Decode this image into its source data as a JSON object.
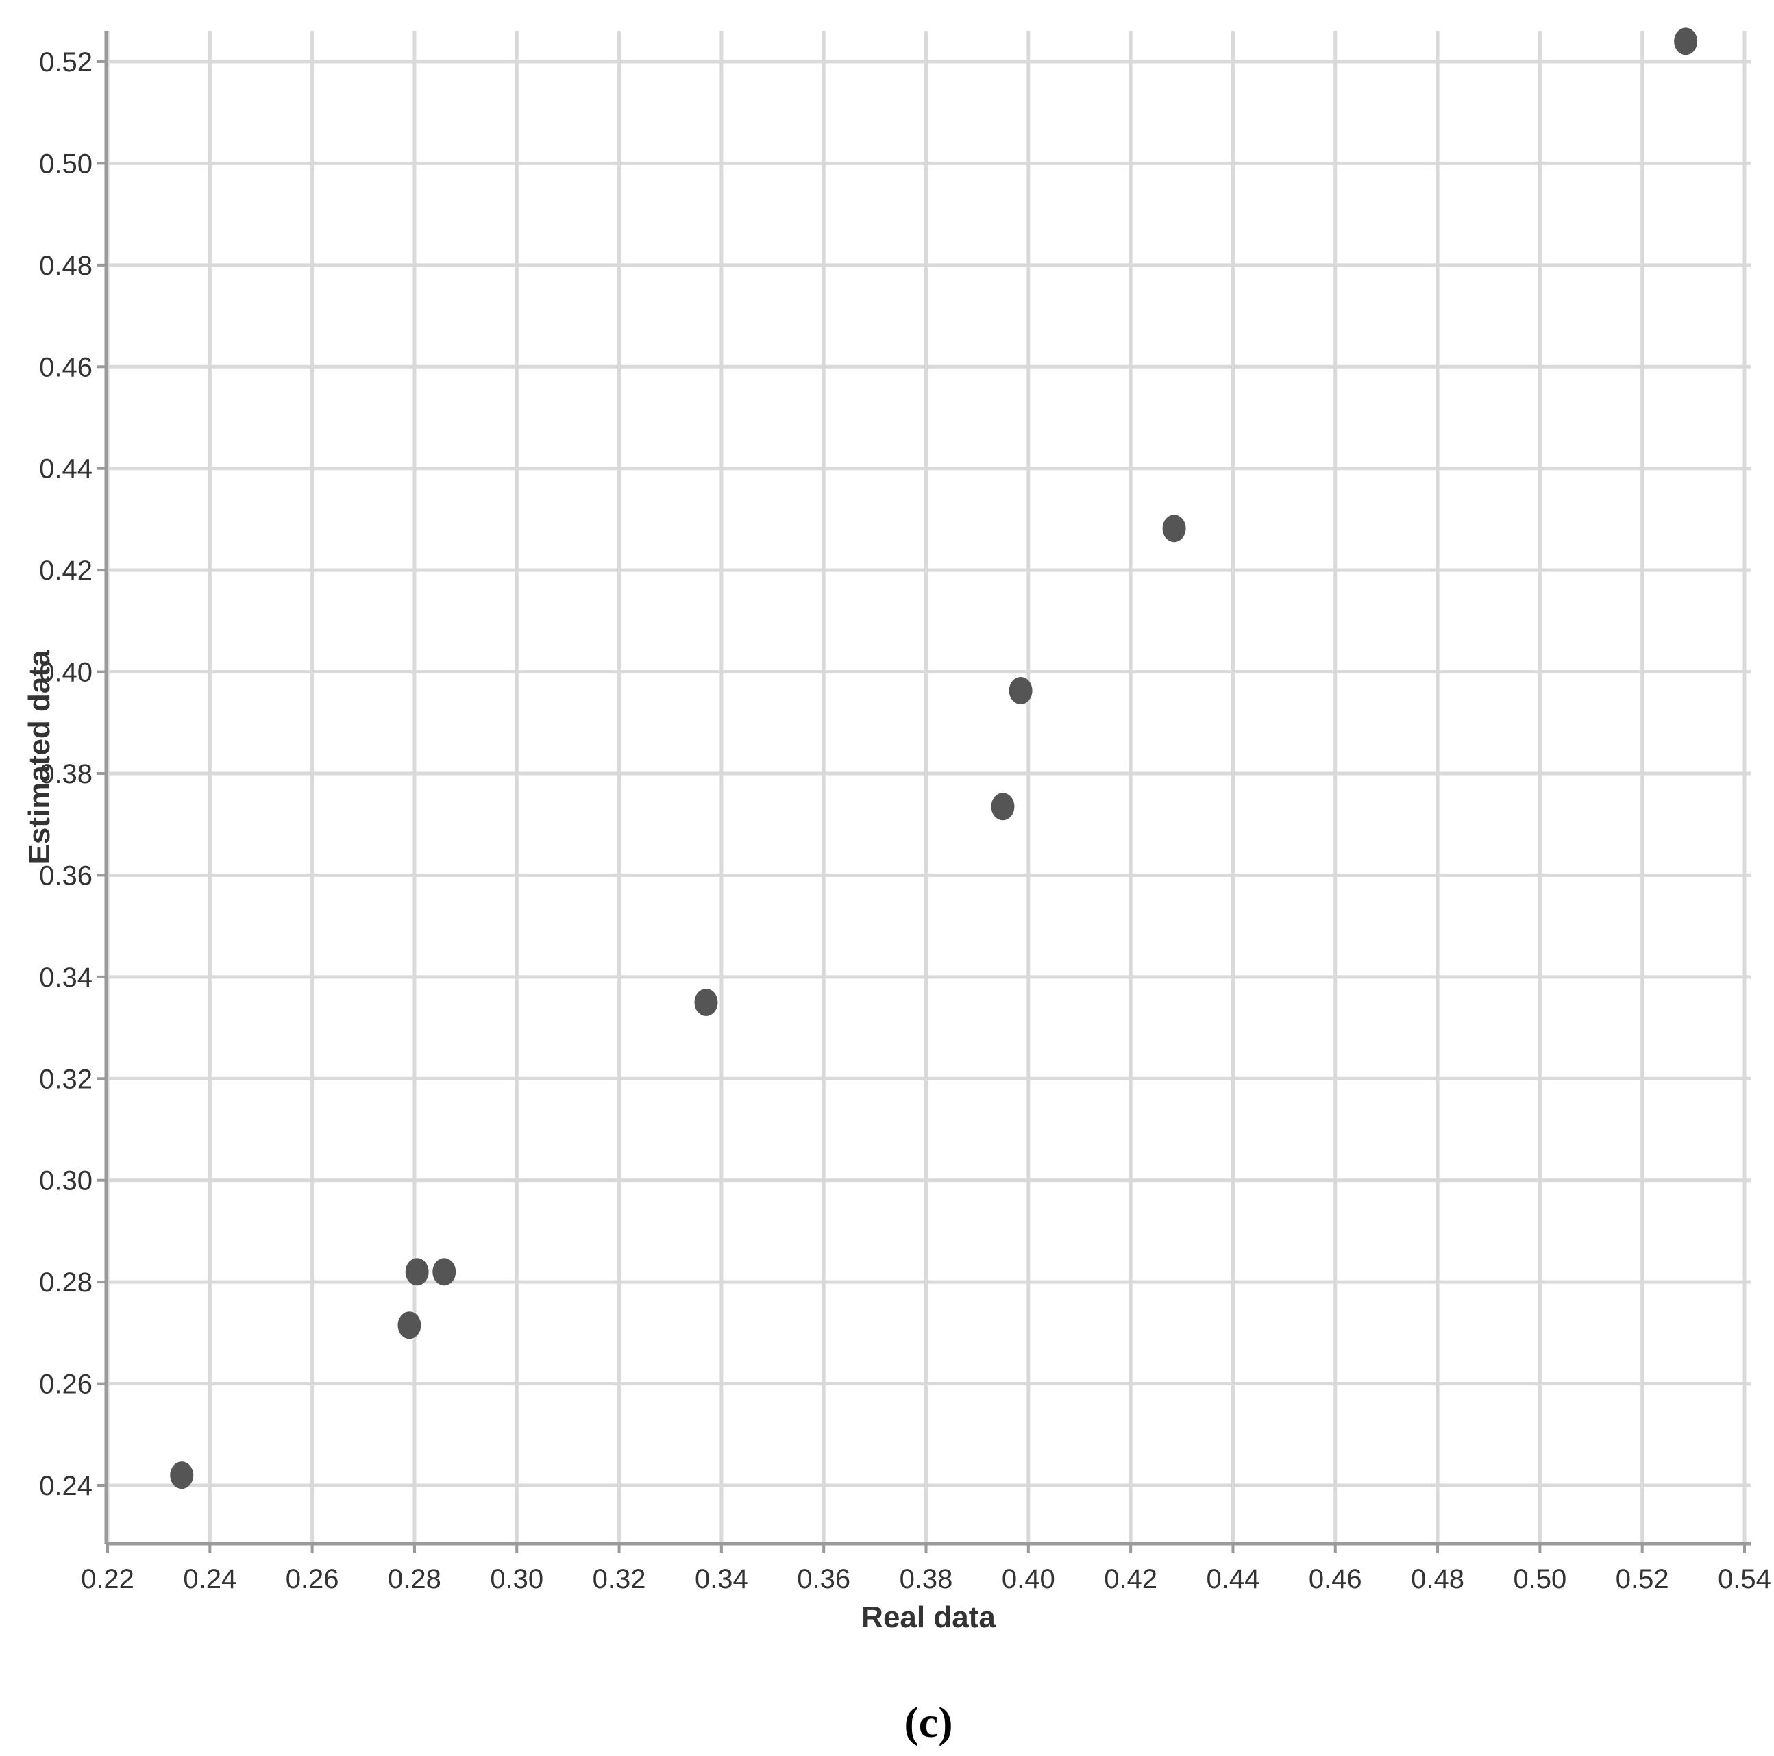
{
  "chart_data": {
    "type": "scatter",
    "title": "",
    "xlabel": "Real data",
    "ylabel": "Estimated data",
    "xlim": [
      0.22,
      0.54
    ],
    "ylim": [
      0.228,
      0.525
    ],
    "grid": true,
    "xticks": [
      "0.22",
      "0.24",
      "0.26",
      "0.28",
      "0.30",
      "0.32",
      "0.34",
      "0.36",
      "0.38",
      "0.40",
      "0.42",
      "0.44",
      "0.46",
      "0.48",
      "0.50",
      "0.52",
      "0.54"
    ],
    "yticks": [
      "0.24",
      "0.26",
      "0.28",
      "0.30",
      "0.32",
      "0.34",
      "0.36",
      "0.38",
      "0.40",
      "0.42",
      "0.44",
      "0.46",
      "0.48",
      "0.50",
      "0.52"
    ],
    "point_color": "#555555",
    "series": [
      {
        "points": [
          {
            "x": 0.2345,
            "y": 0.242
          },
          {
            "x": 0.279,
            "y": 0.2715
          },
          {
            "x": 0.2805,
            "y": 0.282
          },
          {
            "x": 0.2858,
            "y": 0.282
          },
          {
            "x": 0.337,
            "y": 0.335
          },
          {
            "x": 0.395,
            "y": 0.3735
          },
          {
            "x": 0.3985,
            "y": 0.3963
          },
          {
            "x": 0.4285,
            "y": 0.4282
          },
          {
            "x": 0.5285,
            "y": 0.524
          }
        ]
      }
    ]
  },
  "caption": "(c)"
}
